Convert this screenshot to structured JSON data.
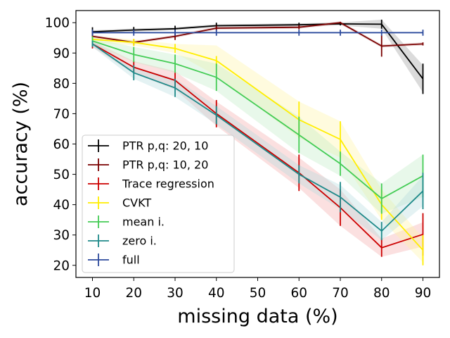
{
  "chart_data": {
    "type": "line",
    "title": "",
    "xlabel": "missing data (%)",
    "ylabel": "accuracy (%)",
    "x": [
      10,
      20,
      30,
      40,
      50,
      60,
      70,
      80,
      90
    ],
    "xticks": [
      10,
      20,
      30,
      40,
      50,
      60,
      70,
      80,
      90
    ],
    "yticks": [
      20,
      30,
      40,
      50,
      60,
      70,
      80,
      90,
      100
    ],
    "xlim": [
      6,
      94
    ],
    "ylim": [
      16,
      104
    ],
    "legend_position": "lower-left",
    "series": [
      {
        "name": "PTR p,q: 20, 10",
        "color": "#000000",
        "band_color": "#999999",
        "x": [
          10,
          20,
          30,
          40,
          60,
          70,
          80,
          90
        ],
        "values": [
          97,
          97.6,
          98,
          99,
          99.3,
          99.6,
          99.5,
          81.5
        ],
        "errors": [
          1.5,
          1,
          1,
          1,
          0.7,
          0.5,
          1.5,
          5
        ],
        "band": [
          0.5,
          0.5,
          0.5,
          0.5,
          0.5,
          0.5,
          1.5,
          4.5
        ]
      },
      {
        "name": "PTR p,q: 10, 20",
        "color": "#7a0000",
        "band_color": "#c89090",
        "x": [
          10,
          20,
          30,
          40,
          60,
          70,
          80,
          90
        ],
        "values": [
          95.5,
          93.5,
          95.5,
          98.2,
          98.5,
          100,
          92.3,
          93
        ],
        "errors": [
          1.5,
          1,
          1.2,
          0.8,
          0.7,
          0.3,
          3.5,
          0.5
        ],
        "band": [
          0.5,
          0.5,
          0.5,
          0.5,
          0.5,
          0.5,
          0.5,
          0.5
        ]
      },
      {
        "name": "Trace regression",
        "color": "#cc0000",
        "band_color": "#f3a6a6",
        "x": [
          10,
          20,
          30,
          40,
          60,
          70,
          80,
          90
        ],
        "values": [
          93,
          85.3,
          81,
          70,
          50.5,
          39,
          25.8,
          30.2
        ],
        "errors": [
          1.5,
          2,
          2.5,
          4.5,
          6,
          6,
          3,
          7
        ],
        "band": [
          1,
          2,
          3,
          4,
          5,
          6,
          3,
          4
        ]
      },
      {
        "name": "CVKT",
        "color": "#ffee00",
        "band_color": "#fff3a0",
        "x": [
          10,
          20,
          30,
          40,
          60,
          70,
          80,
          90
        ],
        "values": [
          94.5,
          93.5,
          91.5,
          87.5,
          68,
          61.5,
          40,
          25
        ],
        "errors": [
          1,
          1.2,
          1.5,
          1.5,
          6,
          6,
          5,
          5
        ],
        "band": [
          1,
          1,
          1.5,
          5,
          6,
          6,
          5,
          4
        ]
      },
      {
        "name": "mean i.",
        "color": "#44cc55",
        "band_color": "#bdecc4",
        "x": [
          10,
          20,
          30,
          40,
          60,
          70,
          80,
          90
        ],
        "values": [
          94,
          89.5,
          86.5,
          82,
          63,
          53.5,
          42,
          49.5
        ],
        "errors": [
          1.5,
          2.5,
          3,
          4.5,
          6,
          4,
          5,
          7
        ],
        "band": [
          1,
          2.5,
          3,
          4.5,
          6,
          4,
          5,
          7
        ]
      },
      {
        "name": "zero i.",
        "color": "#1f8a8a",
        "band_color": "#b2d9dd",
        "x": [
          10,
          20,
          30,
          40,
          60,
          70,
          80,
          90
        ],
        "values": [
          93,
          83.5,
          78.5,
          69.5,
          50,
          42.5,
          31.3,
          44.5
        ],
        "errors": [
          1,
          2.5,
          3,
          3,
          3,
          5,
          3,
          6
        ],
        "band": [
          1,
          2,
          3,
          3,
          3,
          4,
          3,
          5
        ]
      },
      {
        "name": "full",
        "color": "#2c4a9c",
        "band_color": "#aab8df",
        "x": [
          10,
          20,
          30,
          40,
          60,
          70,
          80,
          90
        ],
        "values": [
          96.7,
          96.7,
          96.7,
          96.7,
          96.7,
          96.7,
          96.7,
          96.7
        ],
        "errors": [
          1,
          1,
          1,
          1,
          1,
          1,
          1,
          1
        ],
        "band": [
          0.3,
          0.3,
          0.3,
          0.3,
          0.3,
          0.3,
          0.3,
          0.3
        ]
      }
    ]
  }
}
